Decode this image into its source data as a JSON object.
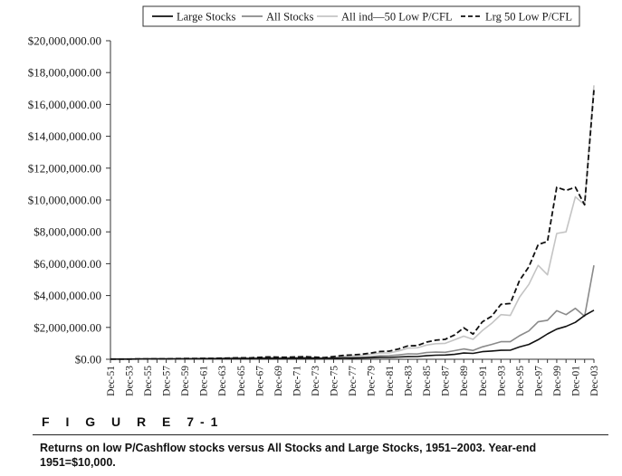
{
  "figure": {
    "label": "F I G U R E  7-1",
    "caption": "Returns on low P/Cashflow stocks versus All Stocks and Large Stocks, 1951–2003. Year-end 1951=$10,000."
  },
  "chart_data": {
    "type": "line",
    "title": "",
    "xlabel": "",
    "ylabel": "",
    "ylim": [
      0,
      20000000
    ],
    "yticks": [
      0,
      2000000,
      4000000,
      6000000,
      8000000,
      10000000,
      12000000,
      14000000,
      16000000,
      18000000,
      20000000
    ],
    "ytick_labels": [
      "$0.00",
      "$2,000,000.00",
      "$4,000,000.00",
      "$6,000,000.00",
      "$8,000,000.00",
      "$10,000,000.00",
      "$12,000,000.00",
      "$14,000,000.00",
      "$16,000,000.00",
      "$18,000,000.00",
      "$20,000,000.00"
    ],
    "x": [
      "Dec-51",
      "Dec-52",
      "Dec-53",
      "Dec-54",
      "Dec-55",
      "Dec-56",
      "Dec-57",
      "Dec-58",
      "Dec-59",
      "Dec-60",
      "Dec-61",
      "Dec-62",
      "Dec-63",
      "Dec-64",
      "Dec-65",
      "Dec-66",
      "Dec-67",
      "Dec-68",
      "Dec-69",
      "Dec-70",
      "Dec-71",
      "Dec-72",
      "Dec-73",
      "Dec-74",
      "Dec-75",
      "Dec-76",
      "Dec-77",
      "Dec-78",
      "Dec-79",
      "Dec-80",
      "Dec-81",
      "Dec-82",
      "Dec-83",
      "Dec-84",
      "Dec-85",
      "Dec-86",
      "Dec-87",
      "Dec-88",
      "Dec-89",
      "Dec-90",
      "Dec-91",
      "Dec-92",
      "Dec-93",
      "Dec-94",
      "Dec-95",
      "Dec-96",
      "Dec-97",
      "Dec-98",
      "Dec-99",
      "Dec-00",
      "Dec-01",
      "Dec-02",
      "Dec-03"
    ],
    "xtick_labels": [
      "Dec-51",
      "Dec-53",
      "Dec-55",
      "Dec-57",
      "Dec-59",
      "Dec-61",
      "Dec-63",
      "Dec-65",
      "Dec-67",
      "Dec-69",
      "Dec-71",
      "Dec-73",
      "Dec-75",
      "Dec-77",
      "Dec-79",
      "Dec-81",
      "Dec-83",
      "Dec-85",
      "Dec-87",
      "Dec-89",
      "Dec-91",
      "Dec-93",
      "Dec-95",
      "Dec-97",
      "Dec-99",
      "Dec-01",
      "Dec-03"
    ],
    "grid": false,
    "legend": "top",
    "series": [
      {
        "name": "Large Stocks",
        "color": "#111111",
        "dash": "solid",
        "values": [
          10000,
          11000,
          11500,
          17000,
          22000,
          23000,
          21000,
          30000,
          32000,
          32500,
          40000,
          37000,
          44000,
          50000,
          53000,
          48000,
          57000,
          62000,
          58000,
          59000,
          66000,
          76000,
          66000,
          50000,
          66000,
          80000,
          76000,
          81000,
          95000,
          120000,
          116000,
          140000,
          165000,
          170000,
          220000,
          255000,
          265000,
          305000,
          390000,
          370000,
          480000,
          515000,
          560000,
          570000,
          770000,
          930000,
          1230000,
          1590000,
          1890000,
          2060000,
          2320000,
          2750000,
          3080000
        ]
      },
      {
        "name": "All Stocks",
        "color": "#8a8a8a",
        "dash": "solid",
        "values": [
          10000,
          11000,
          11000,
          16000,
          19000,
          20000,
          18000,
          27000,
          30000,
          30000,
          38000,
          34000,
          41000,
          49000,
          57000,
          53000,
          75000,
          95000,
          78000,
          76000,
          90000,
          95000,
          72000,
          52000,
          75000,
          100000,
          110000,
          125000,
          160000,
          215000,
          220000,
          270000,
          340000,
          330000,
          420000,
          450000,
          440000,
          540000,
          650000,
          550000,
          780000,
          930000,
          1100000,
          1100000,
          1480000,
          1780000,
          2350000,
          2450000,
          3050000,
          2800000,
          3200000,
          2700000,
          5900000
        ]
      },
      {
        "name": "All ind—50 Low P/CFL",
        "color": "#c4c4c4",
        "dash": "solid",
        "values": [
          10000,
          12000,
          12500,
          19000,
          23000,
          25000,
          23000,
          35000,
          40000,
          40000,
          52000,
          47000,
          57000,
          68000,
          80000,
          76000,
          105000,
          140000,
          115000,
          110000,
          130000,
          140000,
          110000,
          85000,
          130000,
          180000,
          210000,
          245000,
          310000,
          390000,
          400000,
          520000,
          700000,
          720000,
          890000,
          980000,
          1000000,
          1220000,
          1450000,
          1250000,
          1800000,
          2250000,
          2800000,
          2750000,
          3900000,
          4700000,
          5900000,
          5300000,
          7900000,
          8000000,
          10200000,
          9700000,
          17200000
        ]
      },
      {
        "name": "Lrg 50 Low P/CFL",
        "color": "#111111",
        "dash": "dashed",
        "values": [
          10000,
          12000,
          12500,
          20000,
          25000,
          27000,
          25000,
          38000,
          43000,
          44000,
          58000,
          54000,
          66000,
          80000,
          92000,
          86000,
          118000,
          150000,
          128000,
          125000,
          150000,
          165000,
          130000,
          100000,
          170000,
          240000,
          270000,
          310000,
          390000,
          490000,
          510000,
          650000,
          840000,
          860000,
          1080000,
          1200000,
          1250000,
          1520000,
          1980000,
          1580000,
          2350000,
          2700000,
          3450000,
          3500000,
          4950000,
          5800000,
          7200000,
          7400000,
          10800000,
          10600000,
          10800000,
          9700000,
          16900000
        ]
      }
    ]
  }
}
